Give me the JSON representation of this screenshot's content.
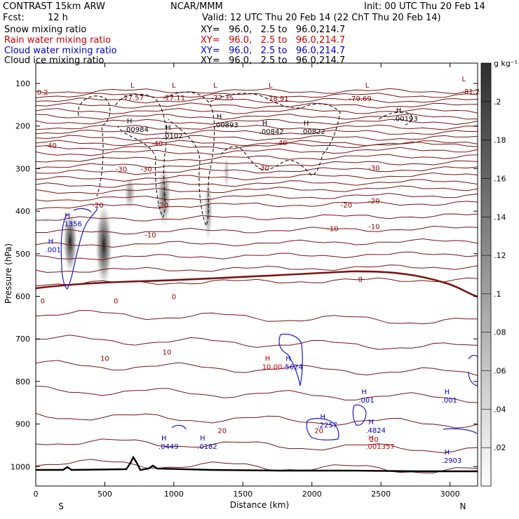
{
  "header": {
    "model": "CONTRAST 15km ARW",
    "org": "NCAR/MMM",
    "init": "Init: 00 UTC Thu 20 Feb 14",
    "fcst_label": "Fcst:",
    "fcst_value": "12 h",
    "valid": "Valid: 12 UTC Thu 20 Feb 14 (22 ChT Thu 20 Feb 14)",
    "fields": [
      {
        "name": "Snow mixing ratio",
        "xy": "XY=   96.0,   2.5 to   96.0,214.7",
        "color": "#000000"
      },
      {
        "name": "Rain water mixing ratio",
        "xy": "XY=   96.0,   2.5 to   96.0,214.7",
        "color": "#cc0000"
      },
      {
        "name": "Cloud water mixing ratio",
        "xy": "XY=   96.0,   2.5 to   96.0,214.7",
        "color": "#0000cc"
      },
      {
        "name": "Cloud ice mixing ratio",
        "xy": "XY=   96.0,   2.5 to   96.0,214.7",
        "color": "#000000"
      }
    ]
  },
  "chart_data": {
    "type": "cross-section",
    "xlabel": "Distance (km)",
    "ylabel": "Pressure (hPa)",
    "xlim": [
      0,
      3200
    ],
    "ylim": [
      1050,
      60
    ],
    "x_ticks": [
      0,
      500,
      1000,
      1500,
      2000,
      2500,
      3000
    ],
    "y_ticks": [
      100,
      200,
      300,
      400,
      500,
      600,
      700,
      800,
      900,
      1000
    ],
    "x_end_labels": {
      "left": "S",
      "right": "N"
    },
    "colorbar": {
      "unit": "g kg⁻¹",
      "ticks": [
        ".02",
        ".04",
        ".06",
        ".08",
        ".1",
        ".12",
        ".14",
        ".16",
        ".18",
        ".2"
      ],
      "values": [
        0.02,
        0.04,
        0.06,
        0.08,
        0.1,
        0.12,
        0.14,
        0.16,
        0.18,
        0.2
      ],
      "range": [
        0,
        0.22
      ]
    },
    "temperature_contours": [
      {
        "label": "-81.2",
        "km": 3150,
        "p": 118
      },
      {
        "label": "-79.69",
        "km": 2350,
        "p": 135
      },
      {
        "label": "-78.91",
        "km": 1750,
        "p": 135
      },
      {
        "label": "-77.57",
        "km": 700,
        "p": 133
      },
      {
        "label": "-77.11",
        "km": 1000,
        "p": 133
      },
      {
        "label": "-77.35",
        "km": 1350,
        "p": 133
      },
      {
        "label": "0.2",
        "km": 50,
        "p": 120
      },
      {
        "label": "-40",
        "km": 110,
        "p": 245
      },
      {
        "label": "-40",
        "km": 880,
        "p": 240
      },
      {
        "label": "-40",
        "km": 1780,
        "p": 238
      },
      {
        "label": "-30",
        "km": 620,
        "p": 300
      },
      {
        "label": "-30",
        "km": 800,
        "p": 300
      },
      {
        "label": "-30",
        "km": 1650,
        "p": 298
      },
      {
        "label": "-30",
        "km": 2450,
        "p": 298
      },
      {
        "label": "-20",
        "km": 450,
        "p": 385
      },
      {
        "label": "-20",
        "km": 920,
        "p": 385
      },
      {
        "label": "-20",
        "km": 2250,
        "p": 385
      },
      {
        "label": "-20",
        "km": 2450,
        "p": 375
      },
      {
        "label": "-10",
        "km": 830,
        "p": 455
      },
      {
        "label": "-10",
        "km": 2150,
        "p": 440
      },
      {
        "label": "-10",
        "km": 2450,
        "p": 435
      },
      {
        "label": "0",
        "km": 50,
        "p": 610
      },
      {
        "label": "0",
        "km": 580,
        "p": 610
      },
      {
        "label": "0",
        "km": 1000,
        "p": 600
      },
      {
        "label": "0",
        "km": 2350,
        "p": 560
      },
      {
        "label": "10",
        "km": 500,
        "p": 745
      },
      {
        "label": "10",
        "km": 950,
        "p": 730
      },
      {
        "label": "20",
        "km": 1350,
        "p": 915
      },
      {
        "label": "20",
        "km": 2050,
        "p": 915
      },
      {
        "label": "20",
        "km": 2450,
        "p": 935
      }
    ],
    "maxima": [
      {
        "label": ".00984",
        "km": 700,
        "p": 210,
        "color": "#000000"
      },
      {
        "label": ".0102",
        "km": 980,
        "p": 225,
        "color": "#000000"
      },
      {
        "label": ".00893",
        "km": 1350,
        "p": 200,
        "color": "#000000"
      },
      {
        "label": ".00842",
        "km": 1680,
        "p": 215,
        "color": "#000000"
      },
      {
        "label": ".00822",
        "km": 1980,
        "p": 215,
        "color": "#000000"
      },
      {
        "label": ".00193",
        "km": 2650,
        "p": 185,
        "color": "#000000"
      },
      {
        "label": ".1356",
        "km": 250,
        "p": 432,
        "color": "#0000cc"
      },
      {
        "label": ".001",
        "km": 130,
        "p": 493,
        "color": "#0000cc"
      },
      {
        "label": "10.00",
        "km": 1700,
        "p": 768,
        "color": "#cc0000"
      },
      {
        "label": ".5624",
        "km": 1850,
        "p": 768,
        "color": "#0000cc"
      },
      {
        "label": ".001",
        "km": 2400,
        "p": 846,
        "color": "#0000cc"
      },
      {
        "label": ".001",
        "km": 3000,
        "p": 846,
        "color": "#0000cc"
      },
      {
        "label": ".2257",
        "km": 2100,
        "p": 905,
        "color": "#0000cc"
      },
      {
        "label": ".4824",
        "km": 2450,
        "p": 917,
        "color": "#0000cc"
      },
      {
        "label": ".001357",
        "km": 2450,
        "p": 955,
        "color": "#cc0000"
      },
      {
        "label": ".0449",
        "km": 950,
        "p": 955,
        "color": "#0000cc"
      },
      {
        "label": ".0182",
        "km": 1230,
        "p": 955,
        "color": "#0000cc"
      },
      {
        "label": ".2903",
        "km": 3000,
        "p": 988,
        "color": "#0000cc"
      }
    ],
    "lows": [
      {
        "km": 700,
        "p": 110
      },
      {
        "km": 1000,
        "p": 110
      },
      {
        "km": 1300,
        "p": 110
      },
      {
        "km": 1700,
        "p": 110
      },
      {
        "km": 2400,
        "p": 110
      },
      {
        "km": 3100,
        "p": 95
      }
    ]
  }
}
